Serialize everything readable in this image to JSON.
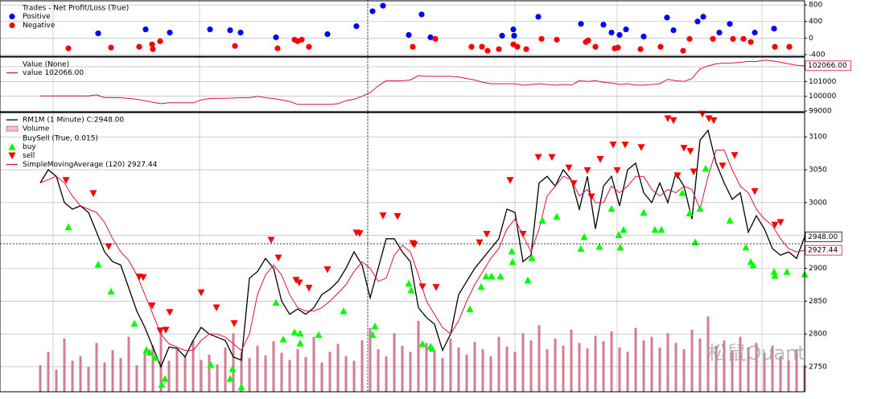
{
  "chart_data": [
    {
      "type": "scatter",
      "title": "Trades - Net Profit/Loss (True)",
      "xlim": [
        -5,
        95
      ],
      "xticks": [
        1.6,
        19.8,
        40.7,
        59,
        71.7,
        89.7
      ],
      "ylim": [
        -440,
        900
      ],
      "yticks": [
        -400,
        0,
        400,
        800
      ],
      "grid": true,
      "series": [
        {
          "name": "Positive",
          "color": "#0000ff",
          "marker": "circle",
          "x": [
            7.2,
            13.1,
            16.1,
            21.1,
            23.6,
            24.9,
            29.3,
            35.7,
            39.3,
            41.3,
            42.6,
            45.8,
            47.4,
            48.5,
            57.4,
            58.8,
            58.9,
            61.9,
            67.2,
            70,
            71,
            72,
            72.8,
            75,
            77.9,
            78.7,
            81.7,
            82.4,
            84.4,
            85.7,
            88.8,
            91.2
          ],
          "values": [
            114,
            210,
            133,
            210,
            190,
            133,
            19,
            95,
            286,
            648,
            781,
            76,
            571,
            19,
            57,
            210,
            57,
            514,
            343,
            324,
            133,
            76,
            210,
            38,
            495,
            190,
            400,
            514,
            133,
            343,
            133,
            229
          ]
        },
        {
          "name": "Negative",
          "color": "#ff0000",
          "marker": "circle",
          "x": [
            3.5,
            8.8,
            12.3,
            13.9,
            14,
            14.9,
            24.2,
            29.5,
            31.6,
            32,
            32.5,
            33.4,
            46.3,
            49.1,
            53.6,
            54.9,
            55.6,
            57,
            58.8,
            59.3,
            60.4,
            62.3,
            64.2,
            67.8,
            68.1,
            69,
            71.4,
            71.8,
            74.6,
            77.1,
            79.9,
            80.7,
            83.6,
            86.1,
            87.4,
            88.3,
            91.3,
            93.1
          ],
          "values": [
            -248,
            -229,
            -210,
            -152,
            -267,
            -76,
            -190,
            -248,
            -38,
            -76,
            -38,
            -210,
            -210,
            -19,
            -210,
            -210,
            -305,
            -267,
            -152,
            -210,
            -267,
            -19,
            -38,
            -95,
            -57,
            -210,
            -248,
            -229,
            -267,
            -210,
            -305,
            -19,
            -19,
            -19,
            -19,
            -95,
            -210,
            -210
          ]
        }
      ]
    },
    {
      "type": "line",
      "title": "Value (None)",
      "xlim": [
        -5,
        95
      ],
      "xticks": [
        1.6,
        19.8,
        40.7,
        59,
        71.7,
        89.7
      ],
      "ylim": [
        98950,
        102650
      ],
      "yticks": [
        99000,
        100000,
        101000,
        102000
      ],
      "grid": true,
      "x": [
        0,
        1,
        2,
        3,
        4,
        5,
        6,
        7,
        8,
        9,
        10,
        11,
        12,
        13,
        14,
        15,
        16,
        17,
        18,
        19,
        20,
        21,
        22,
        23,
        24,
        25,
        26,
        27,
        28,
        29,
        30,
        31,
        32,
        33,
        34,
        35,
        36,
        37,
        38,
        39,
        40,
        41,
        42,
        43,
        44,
        45,
        46,
        47,
        48,
        49,
        50,
        51,
        52,
        53,
        54,
        55,
        56,
        57,
        58,
        59,
        60,
        61,
        62,
        63,
        64,
        65,
        66,
        67,
        68,
        69,
        70,
        71,
        72,
        73,
        74,
        75,
        76,
        77,
        78,
        79,
        80,
        81,
        82,
        83,
        84,
        85,
        86,
        87,
        88,
        89,
        90,
        91,
        92,
        93,
        94,
        95
      ],
      "series": [
        {
          "name": "value 102066.00",
          "color": "#dc143c",
          "end_label": "102066.00",
          "values": [
            100020,
            100020,
            100020,
            100020,
            100020,
            100020,
            100020,
            100100,
            99910,
            99910,
            99900,
            99850,
            99800,
            99700,
            99600,
            99500,
            99560,
            99560,
            99560,
            99560,
            99750,
            99850,
            99860,
            99860,
            99880,
            99900,
            99900,
            100000,
            99900,
            99850,
            99750,
            99650,
            99450,
            99450,
            99450,
            99450,
            99450,
            99500,
            99700,
            99800,
            100000,
            100250,
            100700,
            101050,
            101050,
            101050,
            101100,
            101400,
            101350,
            101350,
            101350,
            101350,
            101300,
            101200,
            101100,
            100950,
            100850,
            100850,
            100850,
            100850,
            100750,
            100800,
            100850,
            100800,
            100750,
            100800,
            100750,
            101050,
            101000,
            101050,
            100950,
            100900,
            100800,
            100850,
            100750,
            100750,
            100800,
            100850,
            101150,
            101050,
            101000,
            101200,
            101850,
            102050,
            102200,
            102250,
            102250,
            102300,
            102350,
            102350,
            102450,
            102400,
            102300,
            102200,
            102100,
            102066
          ]
        }
      ]
    },
    {
      "type": "line",
      "xlim": [
        -5,
        95
      ],
      "xticks": [
        1.6,
        19.8,
        40.7,
        59,
        71.7,
        89.7
      ],
      "ylim": [
        2712,
        3137
      ],
      "yticks": [
        2750,
        2800,
        2850,
        2900,
        2950,
        3000,
        3050,
        3100
      ],
      "grid": true,
      "x": [
        0,
        1,
        2,
        3,
        4,
        5,
        6,
        7,
        8,
        9,
        10,
        11,
        12,
        13,
        14,
        15,
        16,
        17,
        18,
        19,
        20,
        21,
        22,
        23,
        24,
        25,
        26,
        27,
        28,
        29,
        30,
        31,
        32,
        33,
        34,
        35,
        36,
        37,
        38,
        39,
        40,
        41,
        42,
        43,
        44,
        45,
        46,
        47,
        48,
        49,
        50,
        51,
        52,
        53,
        54,
        55,
        56,
        57,
        58,
        59,
        60,
        61,
        62,
        63,
        64,
        65,
        66,
        67,
        68,
        69,
        70,
        71,
        72,
        73,
        74,
        75,
        76,
        77,
        78,
        79,
        80,
        81,
        82,
        83,
        84,
        85,
        86,
        87,
        88,
        89,
        90,
        91,
        92,
        93,
        94,
        95
      ],
      "series": [
        {
          "name": "RM1M (1 Minute) C:2948.00",
          "color": "#000000",
          "type": "line",
          "end_label": "2948.00",
          "values": [
            3030,
            3050,
            3040,
            3000,
            2990,
            2995,
            2985,
            2955,
            2925,
            2910,
            2905,
            2870,
            2835,
            2810,
            2780,
            2750,
            2780,
            2778,
            2765,
            2790,
            2810,
            2800,
            2795,
            2790,
            2765,
            2760,
            2885,
            2895,
            2915,
            2900,
            2850,
            2830,
            2838,
            2830,
            2840,
            2860,
            2868,
            2880,
            2900,
            2925,
            2905,
            2855,
            2900,
            2945,
            2945,
            2925,
            2910,
            2840,
            2825,
            2815,
            2775,
            2800,
            2860,
            2880,
            2900,
            2915,
            2930,
            2945,
            2990,
            2985,
            2910,
            2920,
            3030,
            3040,
            3025,
            3050,
            3035,
            2990,
            3040,
            2960,
            3025,
            3040,
            2995,
            3050,
            3060,
            3015,
            3000,
            3030,
            3000,
            3045,
            3025,
            2975,
            3095,
            3110,
            3060,
            3030,
            3005,
            3015,
            2955,
            2980,
            2960,
            2930,
            2920,
            2925,
            2915,
            2948
          ]
        },
        {
          "name": "Volume",
          "color": "#c8506e",
          "type": "bar",
          "values": [
            30,
            45,
            25,
            60,
            35,
            40,
            28,
            55,
            33,
            47,
            38,
            62,
            30,
            44,
            52,
            70,
            35,
            48,
            40,
            58,
            36,
            42,
            31,
            50,
            66,
            45,
            38,
            52,
            41,
            57,
            44,
            36,
            48,
            39,
            62,
            33,
            45,
            54,
            40,
            35,
            58,
            72,
            48,
            40,
            66,
            52,
            45,
            80,
            55,
            47,
            38,
            60,
            50,
            42,
            56,
            48,
            40,
            62,
            51,
            45,
            66,
            58,
            75,
            48,
            60,
            52,
            70,
            55,
            49,
            63,
            57,
            68,
            50,
            45,
            72,
            58,
            62,
            50,
            66,
            55,
            48,
            70,
            60,
            85,
            52,
            58,
            46,
            62,
            50,
            55,
            44,
            52,
            40,
            36,
            48,
            30
          ]
        },
        {
          "name": "buy",
          "group": "BuySell (True, 0.015)",
          "color": "#00ff00",
          "type": "scatter",
          "marker": "triangle-up",
          "x": [
            3.5,
            7.2,
            8.8,
            11.7,
            13.2,
            13.6,
            14.3,
            15.1,
            15.5,
            21.2,
            23.6,
            23.9,
            25,
            29.3,
            30.2,
            31.6,
            32.3,
            32.3,
            34.6,
            37.7,
            41.3,
            41.6,
            45.8,
            46.1,
            47.5,
            48.5,
            48.7,
            53.4,
            54.8,
            55.4,
            56.1,
            57.2,
            58.6,
            58.7,
            60.6,
            61.1,
            62.4,
            64.2,
            67.2,
            67.6,
            69.5,
            71,
            71.9,
            72.1,
            72.5,
            75,
            76.4,
            77.2,
            79.8,
            80.7,
            81.4,
            82,
            82.7,
            85.7,
            87.7,
            88.3,
            88.6,
            91.2,
            91.3,
            92.8,
            95
          ],
          "values": [
            2963,
            2906,
            2865,
            2816,
            2776,
            2772,
            2764,
            2723,
            2732,
            2753,
            2732,
            2747,
            2719,
            2848,
            2792,
            2803,
            2801,
            2786,
            2799,
            2835,
            2799,
            2812,
            2877,
            2867,
            2785,
            2781,
            2778,
            2838,
            2872,
            2888,
            2888,
            2888,
            2926,
            2910,
            2882,
            2916,
            2973,
            2979,
            2930,
            2948,
            2933,
            2991,
            2951,
            2932,
            2959,
            2985,
            2959,
            2959,
            3015,
            2984,
            2940,
            2991,
            3052,
            2973,
            2932,
            2910,
            2905,
            2895,
            2889,
            2895,
            2891
          ]
        },
        {
          "name": "sell",
          "color": "#ff0000",
          "type": "scatter",
          "marker": "triangle-down",
          "x": [
            3.2,
            6.6,
            8.5,
            12.3,
            12.8,
            13.9,
            14.9,
            15.6,
            16.1,
            20,
            21.9,
            24.1,
            28.7,
            29.6,
            31.8,
            32.2,
            33.4,
            35.7,
            39.3,
            39.7,
            42.6,
            44.4,
            46.3,
            46.5,
            47.5,
            49.2,
            54.6,
            55.5,
            58.4,
            60,
            61.9,
            63.6,
            65.7,
            66.3,
            68,
            68.5,
            69.6,
            71.2,
            71.7,
            72.7,
            74.7,
            78,
            78.7,
            79.2,
            80,
            80.8,
            81.2,
            82.3,
            83.1,
            83.7,
            84.8,
            86.3,
            88.8,
            91.3,
            92
          ],
          "values": [
            3034,
            3014,
            2933,
            2887,
            2886,
            2843,
            2805,
            2806,
            2833,
            2863,
            2840,
            2816,
            2943,
            2916,
            2882,
            2878,
            2870,
            2898,
            2954,
            2953,
            2980,
            2979,
            2938,
            2936,
            2872,
            2871,
            2939,
            2952,
            3034,
            2952,
            3069,
            3069,
            3053,
            3029,
            3049,
            3009,
            3066,
            3088,
            3049,
            3088,
            3084,
            3128,
            3125,
            3041,
            3083,
            3078,
            3047,
            3135,
            3128,
            3125,
            3056,
            3072,
            3017,
            2966,
            2970
          ]
        },
        {
          "name": "SimpleMovingAverage (120) 2927.44",
          "color": "#dc143c",
          "type": "line",
          "end_label": "2927.44",
          "values": [
            3030,
            3035,
            3040,
            3030,
            3010,
            2995,
            2990,
            2985,
            2970,
            2945,
            2925,
            2912,
            2890,
            2860,
            2830,
            2800,
            2785,
            2780,
            2775,
            2775,
            2790,
            2800,
            2800,
            2795,
            2785,
            2775,
            2800,
            2860,
            2890,
            2905,
            2890,
            2860,
            2840,
            2835,
            2835,
            2840,
            2850,
            2862,
            2875,
            2895,
            2910,
            2900,
            2880,
            2885,
            2920,
            2935,
            2925,
            2890,
            2850,
            2830,
            2810,
            2800,
            2820,
            2850,
            2875,
            2895,
            2915,
            2930,
            2960,
            2975,
            2950,
            2925,
            2960,
            3010,
            3025,
            3040,
            3035,
            3010,
            3020,
            3000,
            3000,
            3025,
            3015,
            3025,
            3040,
            3040,
            3020,
            3010,
            3020,
            3015,
            3025,
            3020,
            2990,
            3040,
            3080,
            3080,
            3050,
            3025,
            3015,
            2990,
            2975,
            2965,
            2945,
            2930,
            2925,
            2927.44
          ]
        }
      ]
    }
  ],
  "watermark": "松鼠Quant"
}
